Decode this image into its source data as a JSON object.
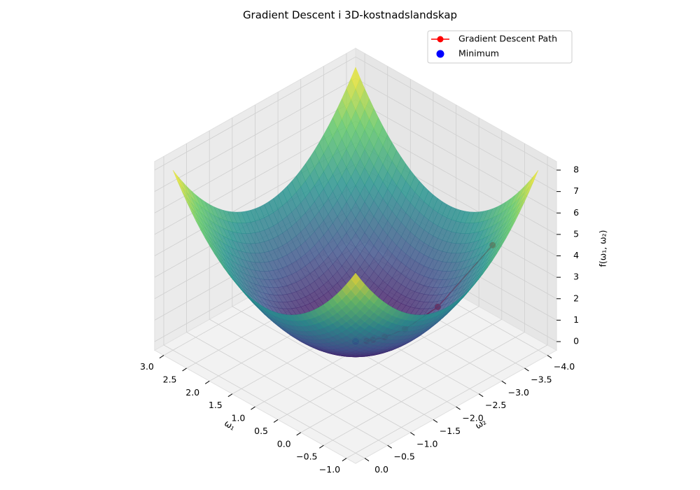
{
  "chart_data": {
    "type": "surface3d",
    "title": "Gradient Descent i 3D-kostnadslandskap",
    "xlabel": "ω₁",
    "ylabel": "ω₂",
    "zlabel": "f(ω₁, ω₂)",
    "xlim": [
      -1,
      3
    ],
    "ylim": [
      -4,
      0
    ],
    "zlim": [
      0,
      8
    ],
    "xticks": [
      {
        "value": -1,
        "label": "−1.0"
      },
      {
        "value": -0.5,
        "label": "−0.5"
      },
      {
        "value": 0,
        "label": "0.0"
      },
      {
        "value": 0.5,
        "label": "0.5"
      },
      {
        "value": 1,
        "label": "1.0"
      },
      {
        "value": 1.5,
        "label": "1.5"
      },
      {
        "value": 2,
        "label": "2.0"
      },
      {
        "value": 2.5,
        "label": "2.5"
      },
      {
        "value": 3,
        "label": "3.0"
      }
    ],
    "yticks": [
      {
        "value": -4,
        "label": "−4.0"
      },
      {
        "value": -3.5,
        "label": "−3.5"
      },
      {
        "value": -3,
        "label": "−3.0"
      },
      {
        "value": -2.5,
        "label": "−2.5"
      },
      {
        "value": -2,
        "label": "−2.0"
      },
      {
        "value": -1.5,
        "label": "−1.5"
      },
      {
        "value": -1,
        "label": "−1.0"
      },
      {
        "value": -0.5,
        "label": "−0.5"
      },
      {
        "value": 0,
        "label": "0.0"
      }
    ],
    "zticks": [
      0,
      1,
      2,
      3,
      4,
      5,
      6,
      7,
      8
    ],
    "grid": true,
    "colormap": "viridis",
    "legend": "upper right",
    "series": [
      {
        "name": "Gradient Descent Path",
        "color": "#ff0000",
        "x": [
          -0.5,
          0.1,
          0.46,
          0.68,
          0.81,
          0.88
        ],
        "y": [
          -3.5,
          -2.9,
          -2.54,
          -2.32,
          -2.19,
          -2.12
        ],
        "z": [
          4.5,
          1.62,
          0.58,
          0.21,
          0.08,
          0.03
        ]
      },
      {
        "name": "Minimum",
        "color": "#0000ff",
        "x": [
          1
        ],
        "y": [
          -2
        ],
        "z": [
          0
        ]
      }
    ]
  }
}
